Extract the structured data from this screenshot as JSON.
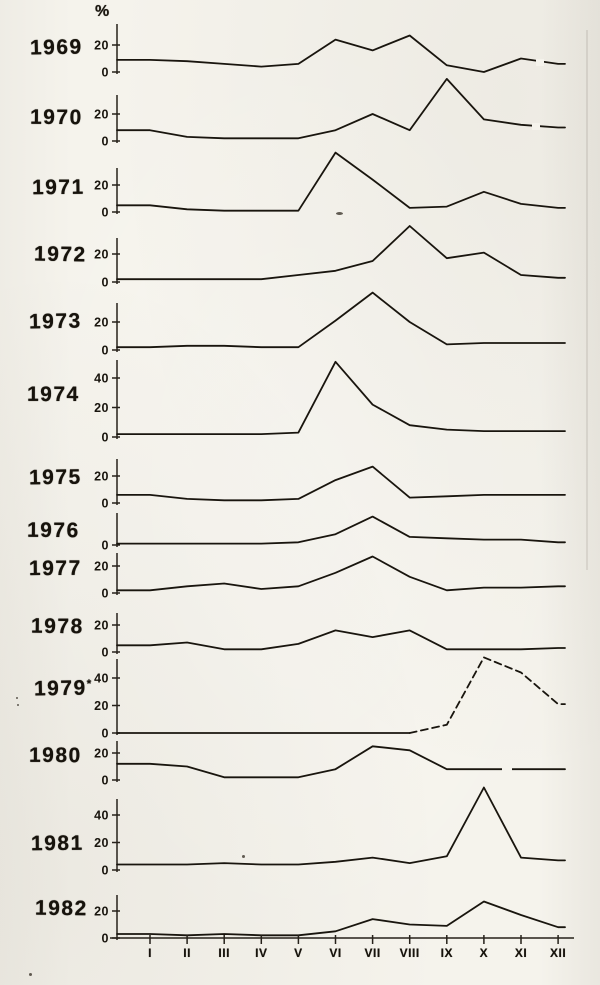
{
  "chart_data": {
    "type": "line",
    "title": "",
    "ylabel": "%",
    "x_axis_label": "",
    "grid": false,
    "legend": false,
    "x_categories": [
      "I",
      "II",
      "III",
      "IV",
      "V",
      "VI",
      "VII",
      "VIII",
      "IX",
      "X",
      "XI",
      "XII"
    ],
    "series": [
      {
        "year": "1969",
        "marker": "",
        "line_style": "solid",
        "yticks": [
          0,
          20
        ],
        "ylim": [
          0,
          30
        ],
        "values": [
          9,
          8,
          6,
          4,
          6,
          24,
          16,
          27,
          5,
          0,
          10,
          6
        ]
      },
      {
        "year": "1970",
        "marker": "",
        "line_style": "solid",
        "yticks": [
          0,
          20
        ],
        "ylim": [
          0,
          50
        ],
        "values": [
          8,
          3,
          2,
          2,
          2,
          8,
          20,
          8,
          46,
          16,
          12,
          10
        ]
      },
      {
        "year": "1971",
        "marker": "",
        "line_style": "solid",
        "yticks": [
          0,
          20
        ],
        "ylim": [
          0,
          48
        ],
        "values": [
          5,
          2,
          1,
          1,
          1,
          44,
          24,
          3,
          4,
          15,
          6,
          3
        ]
      },
      {
        "year": "1972",
        "marker": "",
        "line_style": "solid",
        "yticks": [
          0,
          20
        ],
        "ylim": [
          0,
          42
        ],
        "values": [
          2,
          2,
          2,
          2,
          5,
          8,
          15,
          40,
          17,
          21,
          5,
          3
        ]
      },
      {
        "year": "1973",
        "marker": "",
        "line_style": "solid",
        "yticks": [
          0,
          20
        ],
        "ylim": [
          0,
          43
        ],
        "values": [
          2,
          3,
          3,
          2,
          2,
          21,
          41,
          20,
          4,
          5,
          5,
          5
        ]
      },
      {
        "year": "1974",
        "marker": "",
        "line_style": "solid",
        "yticks": [
          0,
          20,
          40
        ],
        "ylim": [
          0,
          55
        ],
        "values": [
          2,
          2,
          2,
          2,
          3,
          51,
          22,
          8,
          5,
          4,
          4,
          4
        ]
      },
      {
        "year": "1975",
        "marker": "",
        "line_style": "solid",
        "yticks": [
          0,
          20
        ],
        "ylim": [
          0,
          30
        ],
        "values": [
          6,
          3,
          2,
          2,
          3,
          17,
          27,
          4,
          5,
          6,
          6,
          6
        ]
      },
      {
        "year": "1976",
        "marker": "",
        "line_style": "solid",
        "yticks": [
          0
        ],
        "ylim": [
          0,
          24
        ],
        "values": [
          1,
          1,
          1,
          1,
          2,
          8,
          21,
          6,
          5,
          4,
          4,
          2
        ]
      },
      {
        "year": "1977",
        "marker": "",
        "line_style": "solid",
        "yticks": [
          0,
          20
        ],
        "ylim": [
          0,
          29
        ],
        "values": [
          2,
          5,
          7,
          3,
          5,
          15,
          27,
          12,
          2,
          4,
          4,
          5
        ]
      },
      {
        "year": "1978",
        "marker": "",
        "line_style": "solid",
        "yticks": [
          0,
          20
        ],
        "ylim": [
          0,
          28
        ],
        "values": [
          5,
          7,
          2,
          2,
          6,
          16,
          11,
          16,
          2,
          2,
          2,
          3
        ]
      },
      {
        "year": "1979",
        "marker": "*",
        "line_style": "dashed",
        "yticks": [
          0,
          20,
          40
        ],
        "ylim": [
          0,
          58
        ],
        "values": [
          0,
          0,
          0,
          0,
          0,
          0,
          0,
          0,
          6,
          55,
          44,
          21
        ]
      },
      {
        "year": "1980",
        "marker": "",
        "line_style": "solid",
        "yticks": [
          0,
          20
        ],
        "ylim": [
          0,
          28
        ],
        "values": [
          12,
          10,
          2,
          2,
          2,
          8,
          25,
          22,
          8,
          8,
          8,
          8
        ]
      },
      {
        "year": "1981",
        "marker": "",
        "line_style": "solid",
        "yticks": [
          0,
          20,
          40
        ],
        "ylim": [
          0,
          62
        ],
        "values": [
          4,
          4,
          5,
          4,
          4,
          6,
          9,
          5,
          10,
          60,
          9,
          7
        ]
      },
      {
        "year": "1982",
        "marker": "",
        "line_style": "solid",
        "yticks": [
          0,
          20
        ],
        "ylim": [
          0,
          30
        ],
        "values": [
          3,
          2,
          3,
          2,
          2,
          5,
          14,
          10,
          9,
          27,
          17,
          8
        ]
      }
    ]
  }
}
